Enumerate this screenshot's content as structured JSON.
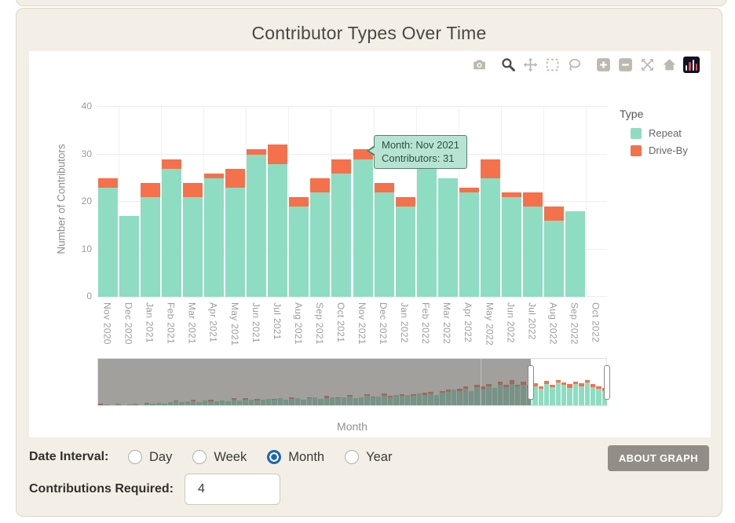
{
  "title": "Contributor Types Over Time",
  "colors": {
    "repeat": "#8EDCC2",
    "drive_by": "#F4714B",
    "radio_selected_blue": "#1F66B0",
    "button_gray": "#928E86",
    "panel_beige": "#F4EFE6",
    "tooltip_bg": "#B7E4D2",
    "tooltip_border": "#54806F"
  },
  "modebar": {
    "icons": [
      "camera",
      "zoom",
      "pan",
      "box-select",
      "lasso",
      "zoom-in",
      "zoom-out",
      "autoscale",
      "reset-home",
      "plotly-logo"
    ],
    "active": "zoom"
  },
  "chart_data": {
    "type": "bar",
    "stacked": true,
    "title": "Contributor Types Over Time",
    "xlabel": "Month",
    "ylabel": "Number of Contributors",
    "ylim": [
      0,
      40
    ],
    "yticks": [
      0,
      10,
      20,
      30,
      40
    ],
    "grid": true,
    "legend_position": "right",
    "categories": [
      "Nov 2020",
      "Dec 2020",
      "Jan 2021",
      "Feb 2021",
      "Mar 2021",
      "Apr 2021",
      "May 2021",
      "Jun 2021",
      "Jul 2021",
      "Aug 2021",
      "Sep 2021",
      "Oct 2021",
      "Nov 2021",
      "Dec 2021",
      "Jan 2022",
      "Feb 2022",
      "Mar 2022",
      "Apr 2022",
      "May 2022",
      "Jun 2022",
      "Jul 2022",
      "Aug 2022",
      "Sep 2022",
      "Oct 2022"
    ],
    "series": [
      {
        "name": "Repeat",
        "color": "#8EDCC2",
        "values": [
          23,
          17,
          21,
          27,
          21,
          25,
          23,
          30,
          28,
          19,
          22,
          26,
          29,
          22,
          19,
          28,
          25,
          22,
          25,
          21,
          19,
          16,
          18,
          0
        ]
      },
      {
        "name": "Drive-By",
        "color": "#F4714B",
        "values": [
          2,
          0,
          3,
          2,
          3,
          1,
          4,
          1,
          4,
          2,
          3,
          3,
          2,
          2,
          2,
          0,
          0,
          1,
          4,
          1,
          3,
          3,
          0,
          0
        ]
      }
    ]
  },
  "tooltip": {
    "line1": "Month: Nov 2021",
    "line2": "Contributors: 31"
  },
  "legend": {
    "title": "Type",
    "items": [
      {
        "label": "Repeat",
        "color": "#8EDCC2"
      },
      {
        "label": "Drive-By",
        "color": "#F4714B"
      }
    ]
  },
  "rangeslider": {
    "mask_end_frac": 0.852,
    "divider_frac": 0.752,
    "bars": [
      [
        0,
        3
      ],
      [
        2,
        0
      ],
      [
        0,
        0
      ],
      [
        3,
        0
      ],
      [
        0,
        0
      ],
      [
        2,
        0
      ],
      [
        4,
        0
      ],
      [
        0,
        0
      ],
      [
        3,
        2
      ],
      [
        4,
        0
      ],
      [
        5,
        0
      ],
      [
        4,
        0
      ],
      [
        6,
        0
      ],
      [
        8,
        2
      ],
      [
        7,
        0
      ],
      [
        9,
        0
      ],
      [
        8,
        3
      ],
      [
        7,
        0
      ],
      [
        10,
        0
      ],
      [
        9,
        2
      ],
      [
        8,
        0
      ],
      [
        10,
        0
      ],
      [
        9,
        0
      ],
      [
        11,
        3
      ],
      [
        10,
        0
      ],
      [
        12,
        2
      ],
      [
        11,
        0
      ],
      [
        10,
        3
      ],
      [
        12,
        0
      ],
      [
        13,
        0
      ],
      [
        11,
        2
      ],
      [
        14,
        0
      ],
      [
        12,
        0
      ],
      [
        13,
        3
      ],
      [
        15,
        0
      ],
      [
        12,
        0
      ],
      [
        14,
        2
      ],
      [
        16,
        0
      ],
      [
        13,
        0
      ],
      [
        15,
        4
      ],
      [
        17,
        0
      ],
      [
        14,
        2
      ],
      [
        16,
        0
      ],
      [
        18,
        3
      ],
      [
        15,
        0
      ],
      [
        17,
        0
      ],
      [
        19,
        4
      ],
      [
        16,
        2
      ],
      [
        18,
        0
      ],
      [
        20,
        5
      ],
      [
        17,
        3
      ],
      [
        21,
        0
      ],
      [
        19,
        4
      ],
      [
        22,
        0
      ],
      [
        20,
        3
      ],
      [
        24,
        0
      ],
      [
        21,
        5
      ],
      [
        25,
        3
      ],
      [
        22,
        0
      ],
      [
        26,
        4
      ],
      [
        28,
        5
      ],
      [
        32,
        0
      ],
      [
        29,
        6
      ],
      [
        35,
        4
      ],
      [
        30,
        0
      ],
      [
        38,
        5
      ],
      [
        33,
        6
      ],
      [
        40,
        4
      ],
      [
        36,
        0
      ],
      [
        42,
        7
      ],
      [
        37,
        5
      ],
      [
        45,
        8
      ],
      [
        39,
        4
      ],
      [
        43,
        6
      ],
      [
        36,
        5
      ],
      [
        40,
        6
      ],
      [
        35,
        5
      ],
      [
        44,
        7
      ],
      [
        38,
        4
      ],
      [
        47,
        6
      ],
      [
        42,
        5
      ],
      [
        36,
        8
      ],
      [
        45,
        5
      ],
      [
        40,
        6
      ],
      [
        48,
        4
      ],
      [
        38,
        7
      ],
      [
        34,
        5
      ],
      [
        30,
        6
      ]
    ]
  },
  "controls": {
    "date_interval_label": "Date Interval:",
    "options": [
      {
        "label": "Day",
        "selected": false
      },
      {
        "label": "Week",
        "selected": false
      },
      {
        "label": "Month",
        "selected": true
      },
      {
        "label": "Year",
        "selected": false
      }
    ],
    "about_button": "ABOUT GRAPH",
    "contributions_label": "Contributions Required:",
    "contributions_value": "4"
  }
}
